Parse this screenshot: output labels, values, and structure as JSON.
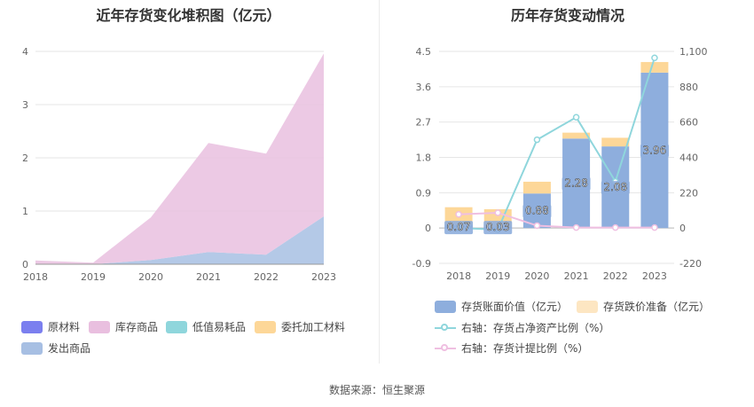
{
  "source": "数据来源：恒生聚源",
  "chart_data": [
    {
      "type": "area",
      "title": "近年存货变化堆积图（亿元）",
      "categories": [
        "2018",
        "2019",
        "2020",
        "2021",
        "2022",
        "2023"
      ],
      "ylim": [
        0,
        4
      ],
      "yticks": [
        "0",
        "1",
        "2",
        "3",
        "4"
      ],
      "grid": true,
      "stacked": true,
      "legend_position": "bottom",
      "series": [
        {
          "name": "原材料",
          "color": "#7b7fef",
          "values": [
            0,
            0,
            0,
            0,
            0,
            0
          ]
        },
        {
          "name": "库存商品",
          "color": "#e9bfdf",
          "values": [
            0.07,
            0.03,
            0.8,
            2.05,
            1.9,
            3.06
          ]
        },
        {
          "name": "低值易耗品",
          "color": "#8fd6dc",
          "values": [
            0,
            0,
            0,
            0,
            0,
            0
          ]
        },
        {
          "name": "委托加工材料",
          "color": "#fdd798",
          "values": [
            0,
            0,
            0,
            0,
            0,
            0
          ]
        },
        {
          "name": "发出商品",
          "color": "#a7bfe3",
          "values": [
            0,
            0,
            0.08,
            0.23,
            0.18,
            0.9
          ]
        }
      ]
    },
    {
      "type": "bar",
      "title": "历年存货变动情况",
      "categories": [
        "2018",
        "2019",
        "2020",
        "2021",
        "2022",
        "2023"
      ],
      "ylim": [
        -0.9,
        4.5
      ],
      "yticks": [
        "-0.9",
        "0",
        "0.9",
        "1.8",
        "2.7",
        "3.6",
        "4.5"
      ],
      "y2lim": [
        -220,
        1100
      ],
      "y2ticks": [
        "-220",
        "0",
        "220",
        "440",
        "660",
        "880",
        "1,100"
      ],
      "stacked": true,
      "legend_position": "bottom",
      "series": [
        {
          "name": "存货账面价值（亿元）",
          "color": "#8eaedd",
          "values": [
            0.07,
            0.03,
            0.88,
            2.28,
            2.08,
            3.96
          ],
          "labels": [
            "0.07",
            "0.03",
            "0.88",
            "2.28",
            "2.08",
            "3.96"
          ]
        },
        {
          "name": "存货跌价准备（亿元）",
          "color": "#fdd798",
          "values": [
            0.46,
            0.45,
            0.3,
            0.15,
            0.22,
            0.27
          ]
        }
      ],
      "line_series": [
        {
          "name": "右轴：存货占净资产比例（%）",
          "color": "#8fd6dc",
          "axis": "right",
          "values": [
            0,
            -10,
            550,
            690,
            290,
            1060
          ]
        },
        {
          "name": "右轴：存货计提比例（%）",
          "color": "#efbfe1",
          "axis": "right",
          "values": [
            85,
            95,
            15,
            3,
            3,
            3
          ]
        }
      ]
    }
  ]
}
